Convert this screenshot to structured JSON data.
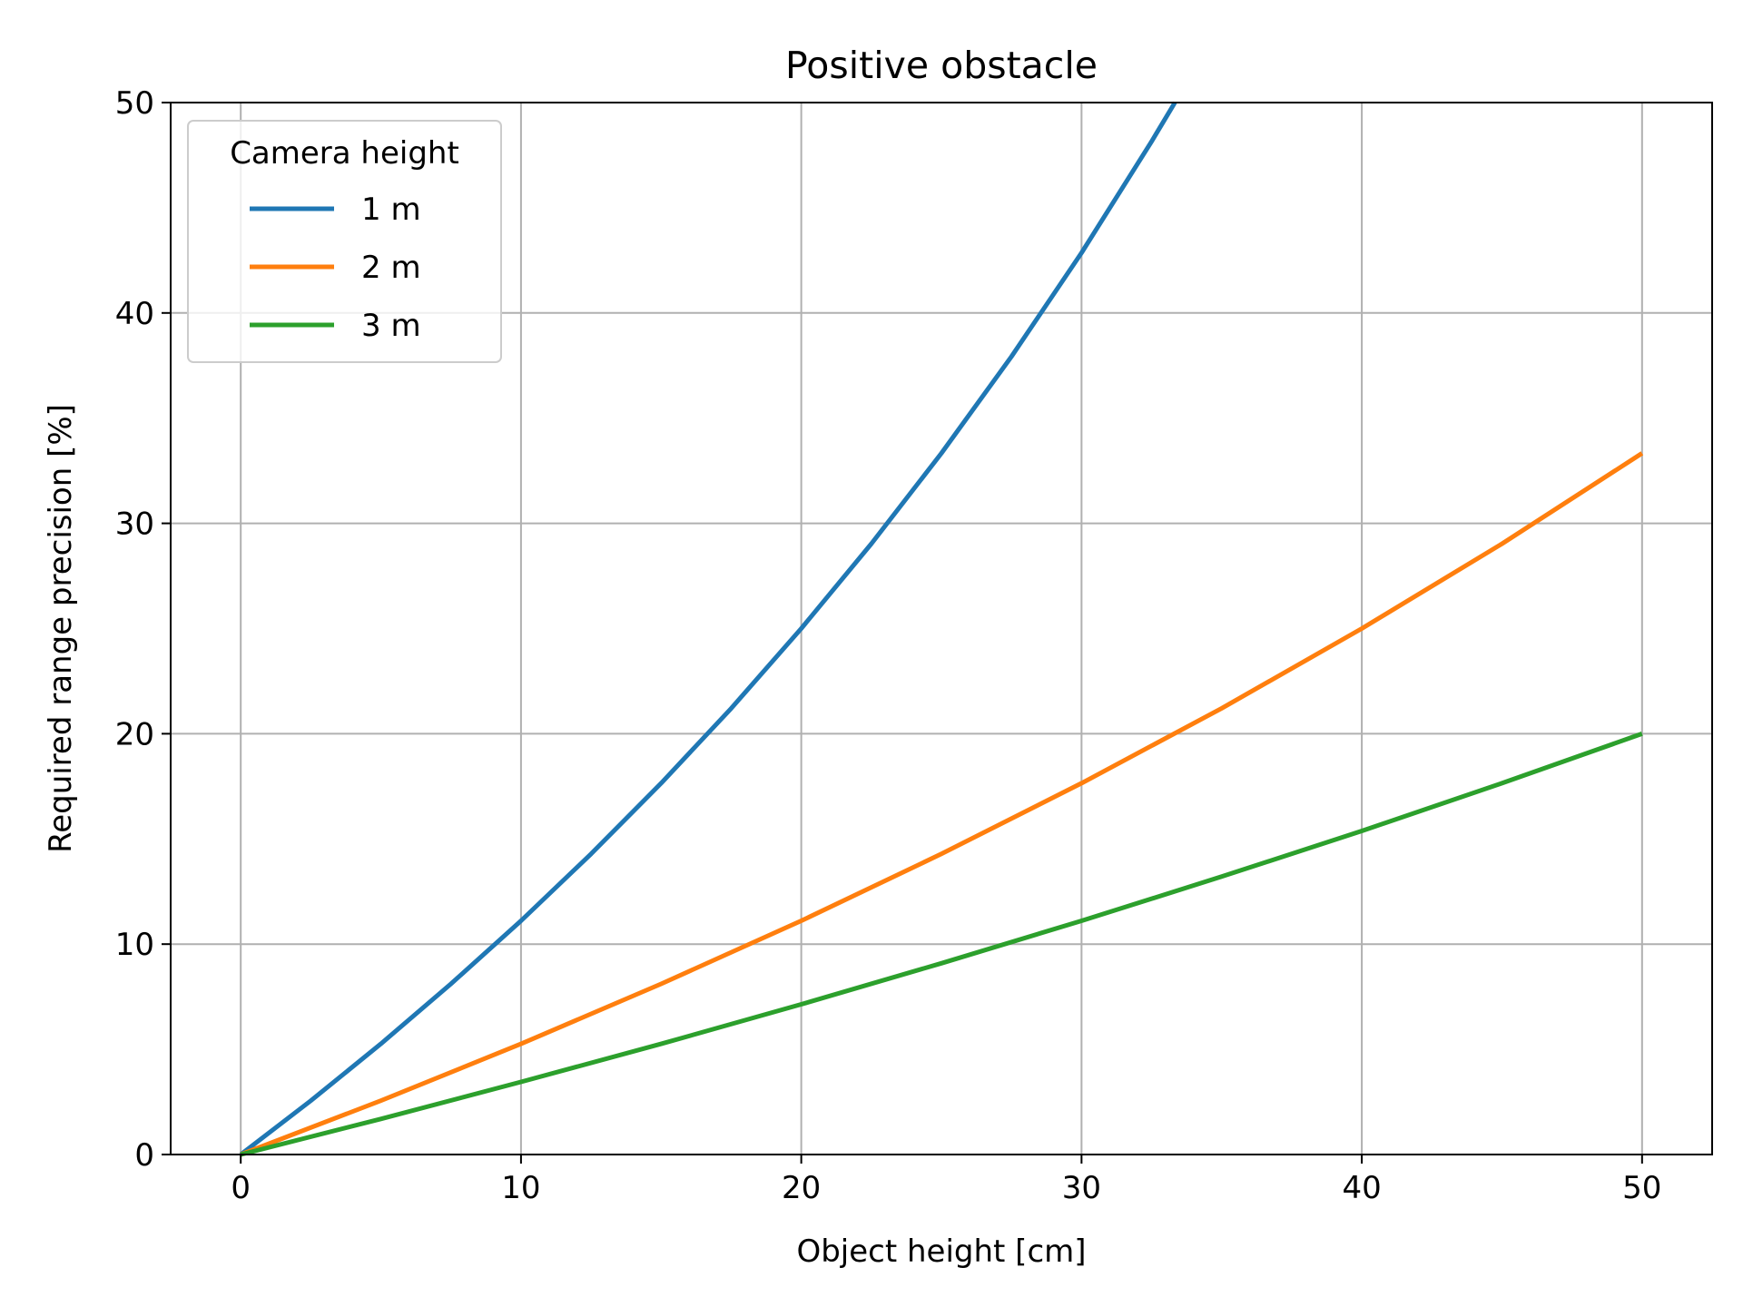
{
  "chart_data": {
    "type": "line",
    "title": "Positive obstacle",
    "xlabel": "Object height [cm]",
    "ylabel": "Required range precision [%]",
    "xlim": [
      -2.5,
      52.5
    ],
    "ylim": [
      0,
      50
    ],
    "xticks": [
      0,
      10,
      20,
      30,
      40,
      50
    ],
    "yticks": [
      0,
      10,
      20,
      30,
      40,
      50
    ],
    "grid": true,
    "legend": {
      "title": "Camera height",
      "placement": "top-left"
    },
    "series": [
      {
        "name": "1 m",
        "color": "#1f77b4",
        "x": [
          0,
          2.5,
          5,
          7.5,
          10,
          12.5,
          15,
          17.5,
          20,
          22.5,
          25,
          27.5,
          30,
          32.5,
          33.33
        ],
        "y": [
          0,
          2.56,
          5.26,
          8.11,
          11.11,
          14.29,
          17.65,
          21.21,
          25.0,
          29.03,
          33.33,
          37.93,
          42.86,
          48.15,
          50.0
        ]
      },
      {
        "name": "2 m",
        "color": "#ff7f0e",
        "x": [
          0,
          5,
          10,
          15,
          20,
          25,
          30,
          35,
          40,
          45,
          50
        ],
        "y": [
          0,
          2.56,
          5.26,
          8.11,
          11.11,
          14.29,
          17.65,
          21.21,
          25.0,
          29.03,
          33.33
        ]
      },
      {
        "name": "3 m",
        "color": "#2ca02c",
        "x": [
          0,
          5,
          10,
          15,
          20,
          25,
          30,
          35,
          40,
          45,
          50
        ],
        "y": [
          0,
          1.69,
          3.45,
          5.26,
          7.14,
          9.09,
          11.11,
          13.21,
          15.38,
          17.65,
          20.0
        ]
      }
    ]
  }
}
